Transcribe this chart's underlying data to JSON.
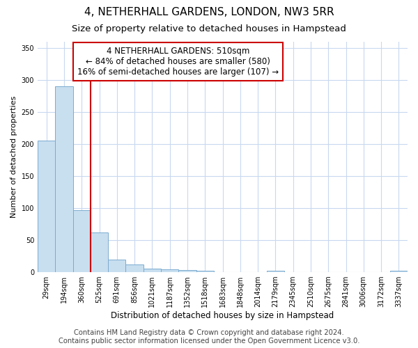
{
  "title": "4, NETHERHALL GARDENS, LONDON, NW3 5RR",
  "subtitle": "Size of property relative to detached houses in Hampstead",
  "xlabel": "Distribution of detached houses by size in Hampstead",
  "ylabel": "Number of detached properties",
  "bin_labels": [
    "29sqm",
    "194sqm",
    "360sqm",
    "525sqm",
    "691sqm",
    "856sqm",
    "1021sqm",
    "1187sqm",
    "1352sqm",
    "1518sqm",
    "1683sqm",
    "1848sqm",
    "2014sqm",
    "2179sqm",
    "2345sqm",
    "2510sqm",
    "2675sqm",
    "2841sqm",
    "3006sqm",
    "3172sqm",
    "3337sqm"
  ],
  "bar_heights": [
    205,
    290,
    97,
    62,
    20,
    12,
    5,
    4,
    3,
    2,
    0,
    0,
    0,
    2,
    0,
    0,
    0,
    0,
    0,
    0,
    2
  ],
  "bar_color": "#c8dff0",
  "bar_edge_color": "#7aaacf",
  "vline_x": 3.0,
  "vline_color": "#cc0000",
  "annotation_text": "4 NETHERHALL GARDENS: 510sqm\n← 84% of detached houses are smaller (580)\n16% of semi-detached houses are larger (107) →",
  "annotation_box_color": "#ffffff",
  "annotation_box_edge_color": "#cc0000",
  "ylim": [
    0,
    360
  ],
  "yticks": [
    0,
    50,
    100,
    150,
    200,
    250,
    300,
    350
  ],
  "footer_text": "Contains HM Land Registry data © Crown copyright and database right 2024.\nContains public sector information licensed under the Open Government Licence v3.0.",
  "bg_color": "#ffffff",
  "plot_bg_color": "#ffffff",
  "grid_color": "#c8d8f0",
  "title_fontsize": 11,
  "subtitle_fontsize": 9.5,
  "footer_fontsize": 7.2,
  "annotation_fontsize": 8.5
}
